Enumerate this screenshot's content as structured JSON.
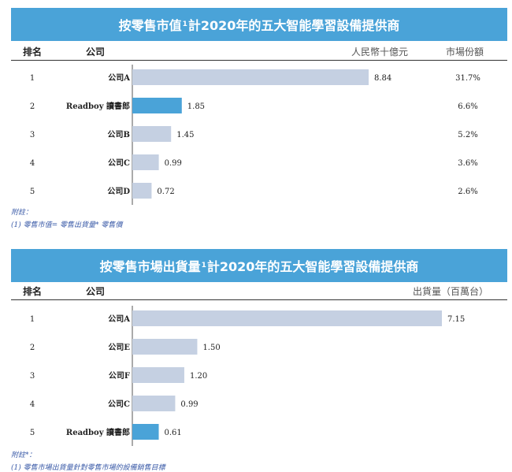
{
  "colors": {
    "title_bg": "#4aa3d8",
    "bar_default": "#c5d0e2",
    "bar_highlight": "#4aa3d8",
    "axis": "#555555",
    "note_text": "#3b5ba8"
  },
  "charts": [
    {
      "title_main": "按零售市值",
      "title_sup": "1",
      "title_rest": "計2020年的五大智能學習設備提供商",
      "headers": {
        "rank": "排名",
        "company": "公司",
        "value": "人民幣十億元",
        "share": "市場份額"
      },
      "note_label": "附註：",
      "note_text": "(1) 零售市值= 零售出貨量* 零售價"
    },
    {
      "title_main": "按零售市場出貨量",
      "title_sup": "1",
      "title_rest": "計2020年的五大智能學習設備提供商",
      "headers": {
        "rank": "排名",
        "company": "公司",
        "value": "出貨量（百萬台）"
      },
      "note_label": "附註*：",
      "note_text": "(1) 零售市場出貨量針對零售市場的設備銷售目標"
    }
  ],
  "chart_data": [
    {
      "type": "bar",
      "orientation": "horizontal",
      "categories": [
        "公司A",
        "Readboy 讀書郎",
        "公司B",
        "公司C",
        "公司D"
      ],
      "ranks": [
        "1",
        "2",
        "3",
        "4",
        "5"
      ],
      "values": [
        8.84,
        1.85,
        1.45,
        0.99,
        0.72
      ],
      "value_labels": [
        "8.84",
        "1.85",
        "1.45",
        "0.99",
        "0.72"
      ],
      "market_share": [
        "31.7%",
        "6.6%",
        "5.2%",
        "3.6%",
        "2.6%"
      ],
      "highlight": [
        false,
        true,
        false,
        false,
        false
      ],
      "xlim": [
        0,
        8.84
      ]
    },
    {
      "type": "bar",
      "orientation": "horizontal",
      "categories": [
        "公司A",
        "公司E",
        "公司F",
        "公司C",
        "Readboy 讀書郎"
      ],
      "ranks": [
        "1",
        "2",
        "3",
        "4",
        "5"
      ],
      "values": [
        7.15,
        1.5,
        1.2,
        0.99,
        0.61
      ],
      "value_labels": [
        "7.15",
        "1.50",
        "1.20",
        "0.99",
        "0.61"
      ],
      "highlight": [
        false,
        false,
        false,
        false,
        true
      ],
      "xlim": [
        0,
        7.15
      ]
    }
  ]
}
